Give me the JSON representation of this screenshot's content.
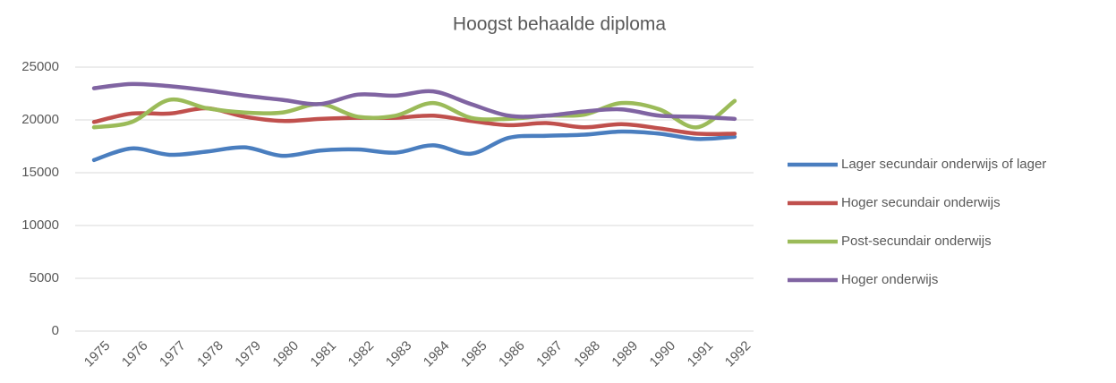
{
  "chart_data": {
    "type": "line",
    "title": "Hoogst behaalde diploma",
    "categories": [
      "1975",
      "1976",
      "1977",
      "1978",
      "1979",
      "1980",
      "1981",
      "1982",
      "1983",
      "1984",
      "1985",
      "1986",
      "1987",
      "1988",
      "1989",
      "1990",
      "1991",
      "1992"
    ],
    "series": [
      {
        "name": "Lager secundair onderwijs of lager",
        "color": "#4a7ebf",
        "values": [
          16200,
          17300,
          16700,
          17000,
          17400,
          16600,
          17100,
          17200,
          16900,
          17600,
          16800,
          18300,
          18500,
          18600,
          18900,
          18700,
          18200,
          18400
        ]
      },
      {
        "name": "Hoger secundair onderwijs",
        "color": "#c0504d",
        "values": [
          19800,
          20600,
          20600,
          21100,
          20300,
          19900,
          20100,
          20200,
          20200,
          20400,
          19900,
          19500,
          19700,
          19300,
          19600,
          19200,
          18700,
          18700
        ]
      },
      {
        "name": "Post-secundair onderwijs",
        "color": "#9bbb59",
        "values": [
          19300,
          19800,
          21900,
          21100,
          20700,
          20700,
          21500,
          20300,
          20400,
          21600,
          20200,
          20100,
          20400,
          20500,
          21600,
          21000,
          19300,
          21800
        ]
      },
      {
        "name": "Hoger onderwijs",
        "color": "#8064a2",
        "values": [
          23000,
          23400,
          23200,
          22800,
          22300,
          21900,
          21500,
          22400,
          22300,
          22700,
          21500,
          20400,
          20400,
          20800,
          21000,
          20400,
          20300,
          20100
        ]
      }
    ],
    "ylim": [
      0,
      25000
    ],
    "yticks": [
      0,
      5000,
      10000,
      15000,
      20000,
      25000
    ],
    "grid": true,
    "legend": "right"
  }
}
